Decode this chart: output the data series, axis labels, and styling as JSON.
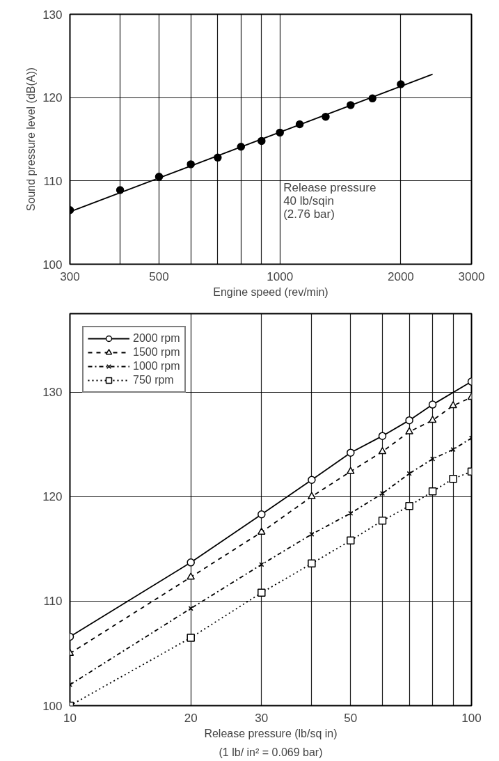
{
  "chart_data": [
    {
      "type": "scatter",
      "xlabel": "Engine speed (rev/min)",
      "ylabel": "Sound pressure level (dB(A))",
      "log": "x",
      "marker": "circle",
      "grid": true,
      "xlim": [
        300,
        3000
      ],
      "ylim": [
        100,
        130
      ],
      "xticks": [
        300,
        {
          "value": 400,
          "label": null
        },
        500,
        {
          "value": 600,
          "label": null
        },
        {
          "value": 700,
          "label": null
        },
        {
          "value": 800,
          "label": null
        },
        {
          "value": 900,
          "label": null
        },
        1000,
        2000,
        3000
      ],
      "yticks": [
        100,
        110,
        120,
        130
      ],
      "annotations": [
        "Release pressure\n40 lb/sqin\n(2.76 bar)"
      ],
      "series": [
        {
          "color": "#000000",
          "x": [
            300,
            400,
            500,
            600,
            700,
            800,
            900,
            1000,
            1120,
            1300,
            1500,
            1700,
            2000
          ],
          "values": [
            106.5,
            108.9,
            110.5,
            112.0,
            112.8,
            114.1,
            114.8,
            115.8,
            116.8,
            117.7,
            119.1,
            119.9,
            121.6
          ]
        },
        {
          "type": "line",
          "marker": "none",
          "line_style": "solid",
          "color": "#000000",
          "x": [
            300,
            2400
          ],
          "values": [
            106.3,
            122.8
          ]
        }
      ]
    },
    {
      "type": "line",
      "xlabel": "Release pressure (lb/sq in)",
      "log": "x",
      "grid": true,
      "legend": "top left",
      "xlim": [
        10,
        100
      ],
      "ylim": [
        100,
        137.5
      ],
      "xticks": [
        10,
        20,
        30,
        {
          "value": 40,
          "label": null
        },
        50,
        {
          "value": 60,
          "label": null
        },
        {
          "value": 70,
          "label": null
        },
        {
          "value": 80,
          "label": null
        },
        {
          "value": 90,
          "label": null
        },
        100
      ],
      "yticks": [
        100,
        110,
        120,
        130
      ],
      "annotations": [
        "(1 lb/ in² = 0.069 bar)"
      ],
      "series": [
        {
          "name": "2000 rpm",
          "color": "#000000",
          "marker": "circle",
          "line_style": "solid",
          "x": [
            10,
            20,
            30,
            40,
            50,
            60,
            70,
            80,
            100
          ],
          "values": [
            106.6,
            113.7,
            118.3,
            121.6,
            124.2,
            125.8,
            127.3,
            128.8,
            131.0
          ]
        },
        {
          "name": "1500 rpm",
          "color": "#000000",
          "marker": "triangle",
          "line_style": "dashed",
          "x": [
            10,
            20,
            30,
            40,
            50,
            60,
            70,
            80,
            90,
            100
          ],
          "values": [
            105.0,
            112.3,
            116.6,
            120.0,
            122.4,
            124.3,
            126.2,
            127.3,
            128.7,
            129.5
          ]
        },
        {
          "name": "1000 rpm",
          "color": "#000000",
          "marker": "cross",
          "line_style": "dashdot",
          "x": [
            10,
            20,
            30,
            40,
            50,
            60,
            70,
            80,
            90,
            100
          ],
          "values": [
            102.0,
            109.3,
            113.5,
            116.4,
            118.4,
            120.3,
            122.2,
            123.6,
            124.5,
            125.6
          ]
        },
        {
          "name": "750 rpm",
          "color": "#000000",
          "marker": "square",
          "line_style": "dotted",
          "x": [
            10,
            20,
            30,
            40,
            50,
            60,
            70,
            80,
            90,
            100
          ],
          "values": [
            100.0,
            106.5,
            110.8,
            113.6,
            115.8,
            117.7,
            119.1,
            120.5,
            121.7,
            122.4
          ]
        }
      ]
    }
  ]
}
